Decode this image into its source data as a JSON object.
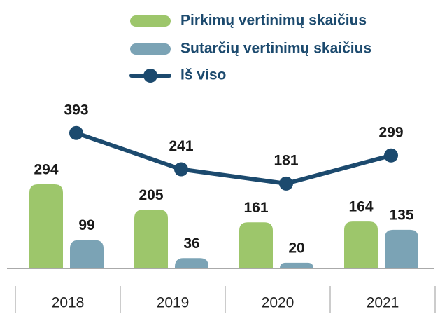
{
  "chart_data": {
    "type": "bar",
    "categories": [
      "2018",
      "2019",
      "2020",
      "2021"
    ],
    "series": [
      {
        "name": "Pirkimų vertinimų skaičius",
        "color": "#9dc66b",
        "values": [
          294,
          205,
          161,
          164
        ]
      },
      {
        "name": "Sutarčių vertinimų skaičius",
        "color": "#7ba3b5",
        "values": [
          99,
          36,
          20,
          135
        ]
      },
      {
        "name": "Iš viso",
        "color": "#1c4a6e",
        "type": "line",
        "axis": "y2",
        "values": [
          393,
          241,
          181,
          299
        ]
      }
    ],
    "ylim": [
      0,
      571
    ],
    "y2lim": [
      -175,
      510
    ]
  }
}
